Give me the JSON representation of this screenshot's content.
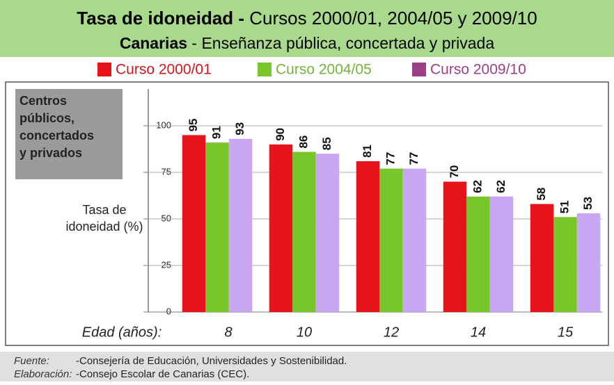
{
  "chart_data": {
    "type": "bar",
    "title": {
      "bold": "Tasa de idoneidad -",
      "rest": "Cursos 2000/01, 2004/05 y 2009/10"
    },
    "subtitle": {
      "bold": "Canarias",
      "rest": "-  Enseñanza pública, concertada y privada"
    },
    "panel_label": [
      "Centros",
      "públicos,",
      "concertados",
      "y privados"
    ],
    "ylabel": [
      "Tasa de",
      "idoneidad (%)"
    ],
    "xlabel": "Edad (años):",
    "categories": [
      "8",
      "10",
      "12",
      "14",
      "15"
    ],
    "series": [
      {
        "name": "Curso 2000/01",
        "color": "#e8141c",
        "legend_color": "#e8141c",
        "text_color": "#d8141c",
        "values": [
          95,
          90,
          81,
          70,
          58
        ]
      },
      {
        "name": "Curso 2004/05",
        "color": "#77c62a",
        "legend_color": "#77c62a",
        "text_color": "#74b33a",
        "values": [
          91,
          86,
          77,
          62,
          51
        ]
      },
      {
        "name": "Curso 2009/10",
        "color": "#c8a6f2",
        "legend_color": "#9c3f88",
        "text_color": "#9c3f88",
        "values": [
          93,
          85,
          77,
          62,
          53
        ]
      }
    ],
    "ylim": [
      0,
      100
    ],
    "yticks": [
      0,
      25,
      50,
      75,
      100
    ],
    "grid": true,
    "footer": [
      {
        "label": "Fuente:",
        "text": "-Consejería de Educación, Universidades y Sostenibilidad."
      },
      {
        "label": "Elaboración:",
        "text": "-Consejo Escolar de Canarias (CEC)."
      }
    ]
  }
}
